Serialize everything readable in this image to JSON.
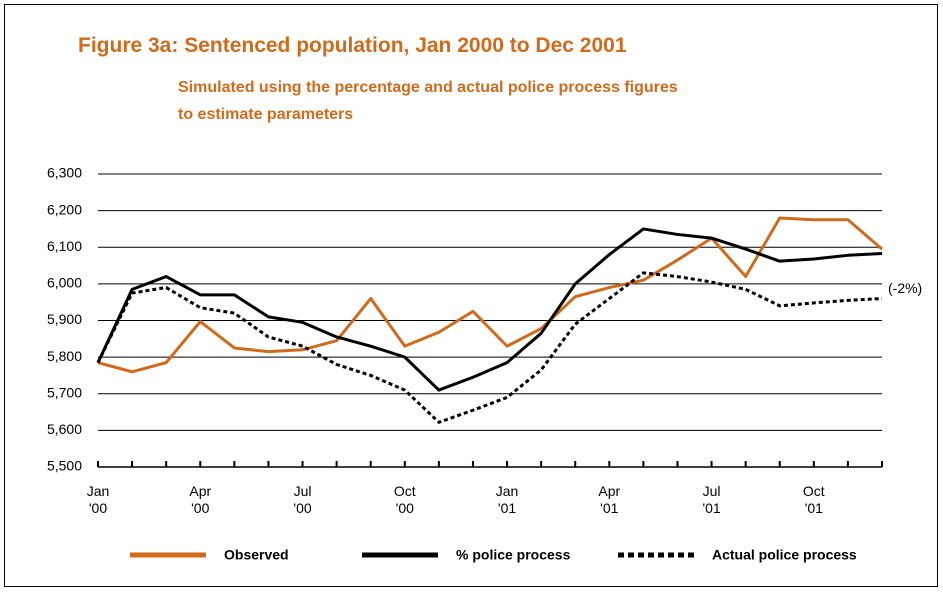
{
  "chart_data": {
    "type": "line",
    "title": "Figure 3a: Sentenced population, Jan 2000 to Dec 2001",
    "subtitle": [
      "Simulated using the percentage and actual police process figures",
      "to estimate parameters"
    ],
    "categories": [
      "Jan\n'00",
      null,
      null,
      "Apr\n'00",
      null,
      null,
      "Jul\n'00",
      null,
      null,
      "Oct\n'00",
      null,
      null,
      "Jan\n'01",
      null,
      null,
      "Apr\n'01",
      null,
      null,
      "Jul\n'01",
      null,
      null,
      "Oct\n'01",
      null,
      null
    ],
    "ylim": [
      5500,
      6300
    ],
    "yticks": [
      {
        "value": 5500,
        "label": "5,500"
      },
      {
        "value": 5600,
        "label": "5,600"
      },
      {
        "value": 5700,
        "label": "5,700"
      },
      {
        "value": 5800,
        "label": "5,800"
      },
      {
        "value": 5900,
        "label": "5,900"
      },
      {
        "value": 6000,
        "label": "6,000"
      },
      {
        "value": 6100,
        "label": "6,100"
      },
      {
        "value": 6200,
        "label": "6,200"
      },
      {
        "value": 6300,
        "label": "6,300"
      }
    ],
    "grid": true,
    "series": [
      {
        "name": "Observed",
        "color": "#d06a1c",
        "dash": false,
        "values": [
          5785,
          5760,
          5785,
          5897,
          5825,
          5815,
          5820,
          5845,
          5960,
          5830,
          5868,
          5925,
          5830,
          5878,
          5965,
          5990,
          6010,
          6065,
          6125,
          6020,
          6180,
          6175,
          6175,
          6095
        ]
      },
      {
        "name": "% police process",
        "color": "#000000",
        "dash": false,
        "values": [
          5785,
          5985,
          6020,
          5970,
          5970,
          5910,
          5895,
          5855,
          5830,
          5800,
          5710,
          5745,
          5785,
          5865,
          6000,
          6080,
          6150,
          6135,
          6125,
          6095,
          6062,
          6068,
          6078,
          6083
        ]
      },
      {
        "name": "Actual police process",
        "color": "#000000",
        "dash": true,
        "values": [
          5785,
          5975,
          5990,
          5935,
          5920,
          5855,
          5830,
          5780,
          5750,
          5710,
          5622,
          5655,
          5690,
          5765,
          5890,
          5960,
          6030,
          6020,
          6005,
          5985,
          5940,
          5948,
          5955,
          5960
        ]
      }
    ],
    "annotation": "(-2%)",
    "legend": "bottom"
  }
}
